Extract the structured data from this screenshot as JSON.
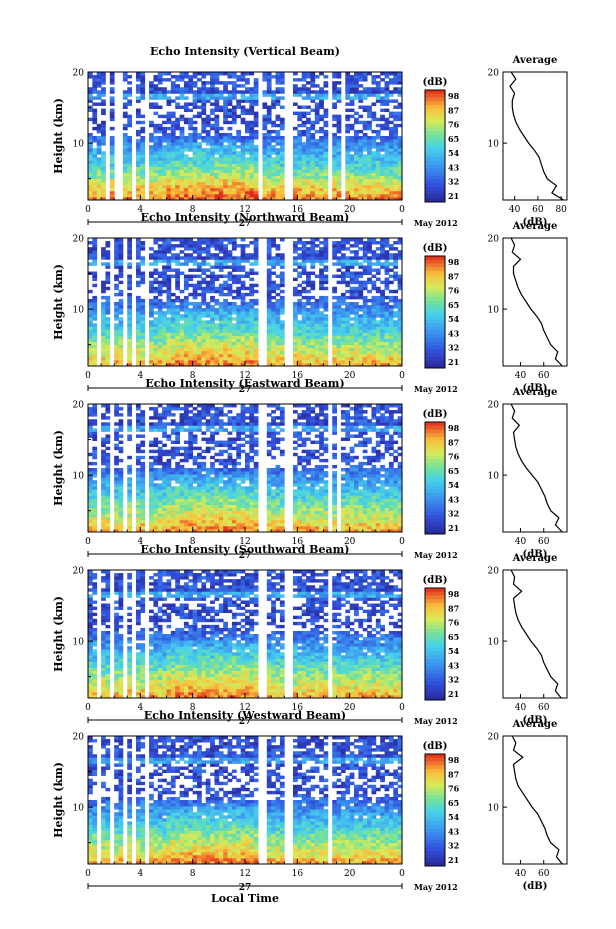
{
  "chart_data": [
    {
      "type": "heatmap",
      "title": "Echo Intensity (Vertical Beam)",
      "ylabel": "Height (km)",
      "ylim": [
        2,
        20
      ],
      "yticks": [
        20,
        10
      ],
      "xticks": [
        "0",
        "4",
        "8",
        "12",
        "16",
        "20",
        "0"
      ],
      "xlim": [
        0,
        24
      ],
      "date_label": "27",
      "month_label": "May 2012",
      "colorbar": {
        "unit": "(dB)",
        "ticks": [
          "98",
          "87",
          "76",
          "65",
          "54",
          "43",
          "32",
          "21"
        ],
        "range": [
          21,
          98
        ]
      },
      "missing_hours": [
        [
          1.2,
          1.6
        ],
        [
          2.1,
          2.5
        ],
        [
          3.4,
          3.7
        ],
        [
          4.4,
          4.6
        ],
        [
          13.0,
          13.3
        ],
        [
          14.9,
          15.6
        ],
        [
          18.4,
          18.7
        ],
        [
          19.2,
          19.5
        ]
      ],
      "average_profile": {
        "title": "Average",
        "xlabel": "(dB)",
        "xticks": [
          "40",
          "60",
          "80"
        ],
        "xlim": [
          30,
          85
        ],
        "yticks": [
          20,
          10
        ],
        "ylim": [
          2,
          20
        ],
        "height": [
          2,
          3,
          4,
          5,
          6,
          7,
          8,
          9,
          10,
          11,
          12,
          13,
          14,
          15,
          16,
          17,
          18,
          19,
          20
        ],
        "db": [
          82,
          72,
          76,
          68,
          65,
          63,
          61,
          57,
          52,
          48,
          44,
          41,
          39,
          38,
          38,
          40,
          36,
          41,
          37
        ]
      }
    },
    {
      "type": "heatmap",
      "title": "Echo Intensity (Northward Beam)",
      "ylabel": "Height (km)",
      "ylim": [
        2,
        20
      ],
      "yticks": [
        20,
        10
      ],
      "xticks": [
        "0",
        "4",
        "8",
        "12",
        "16",
        "20",
        "0"
      ],
      "xlim": [
        0,
        24
      ],
      "date_label": "27",
      "month_label": "May 2012",
      "colorbar": {
        "unit": "(dB)",
        "ticks": [
          "98",
          "87",
          "76",
          "65",
          "54",
          "43",
          "32",
          "21"
        ],
        "range": [
          21,
          98
        ]
      },
      "missing_hours": [
        [
          0.8,
          1.1
        ],
        [
          1.6,
          2.0
        ],
        [
          2.6,
          2.9
        ],
        [
          3.4,
          3.7
        ],
        [
          4.5,
          4.7
        ],
        [
          13.0,
          13.5
        ],
        [
          15.1,
          15.7
        ],
        [
          18.4,
          18.6
        ]
      ],
      "average_profile": {
        "title": "Average",
        "xlabel": "(dB)",
        "xticks": [
          "40",
          "60"
        ],
        "xlim": [
          25,
          80
        ],
        "yticks": [
          20,
          10
        ],
        "ylim": [
          2,
          20
        ],
        "height": [
          2,
          3,
          4,
          5,
          6,
          7,
          8,
          9,
          10,
          11,
          12,
          13,
          14,
          15,
          16,
          17,
          18,
          19,
          20
        ],
        "db": [
          76,
          70,
          72,
          66,
          63,
          60,
          58,
          54,
          49,
          45,
          41,
          38,
          36,
          34,
          34,
          40,
          33,
          35,
          32
        ]
      }
    },
    {
      "type": "heatmap",
      "title": "Echo Intensity (Eastward Beam)",
      "ylabel": "Height (km)",
      "ylim": [
        2,
        20
      ],
      "yticks": [
        20,
        10
      ],
      "xticks": [
        "0",
        "4",
        "8",
        "12",
        "16",
        "20",
        "0"
      ],
      "xlim": [
        0,
        24
      ],
      "date_label": "27",
      "month_label": "May 2012",
      "colorbar": {
        "unit": "(dB)",
        "ticks": [
          "98",
          "87",
          "76",
          "65",
          "54",
          "43",
          "32",
          "21"
        ],
        "range": [
          21,
          98
        ]
      },
      "missing_hours": [
        [
          0.8,
          1.1
        ],
        [
          1.6,
          2.0
        ],
        [
          2.6,
          2.9
        ],
        [
          3.4,
          3.7
        ],
        [
          4.5,
          4.7
        ],
        [
          13.0,
          13.5
        ],
        [
          15.1,
          15.7
        ],
        [
          18.4,
          18.6
        ],
        [
          19.1,
          19.4
        ]
      ],
      "average_profile": {
        "title": "Average",
        "xlabel": "(dB)",
        "xticks": [
          "40",
          "60"
        ],
        "xlim": [
          25,
          80
        ],
        "yticks": [
          20,
          10
        ],
        "ylim": [
          2,
          20
        ],
        "height": [
          2,
          3,
          4,
          5,
          6,
          7,
          8,
          9,
          10,
          11,
          12,
          13,
          14,
          15,
          16,
          17,
          18,
          19,
          20
        ],
        "db": [
          76,
          70,
          73,
          66,
          63,
          61,
          58,
          55,
          50,
          45,
          41,
          38,
          36,
          35,
          34,
          39,
          33,
          35,
          32
        ]
      }
    },
    {
      "type": "heatmap",
      "title": "Echo Intensity (Southward Beam)",
      "ylabel": "Height (km)",
      "ylim": [
        2,
        20
      ],
      "yticks": [
        20,
        10
      ],
      "xticks": [
        "0",
        "4",
        "8",
        "12",
        "16",
        "20",
        "0"
      ],
      "xlim": [
        0,
        24
      ],
      "date_label": "27",
      "month_label": "May 2012",
      "colorbar": {
        "unit": "(dB)",
        "ticks": [
          "98",
          "87",
          "76",
          "65",
          "54",
          "43",
          "32",
          "21"
        ],
        "range": [
          21,
          98
        ]
      },
      "missing_hours": [
        [
          0.8,
          1.1
        ],
        [
          1.6,
          2.0
        ],
        [
          2.6,
          2.9
        ],
        [
          3.4,
          3.7
        ],
        [
          4.5,
          4.7
        ],
        [
          13.0,
          13.5
        ],
        [
          15.1,
          15.7
        ],
        [
          18.4,
          18.6
        ]
      ],
      "average_profile": {
        "title": "Average",
        "xlabel": "(dB)",
        "xticks": [
          "40",
          "60"
        ],
        "xlim": [
          25,
          80
        ],
        "yticks": [
          20,
          10
        ],
        "ylim": [
          2,
          20
        ],
        "height": [
          2,
          3,
          4,
          5,
          6,
          7,
          8,
          9,
          10,
          11,
          12,
          13,
          14,
          15,
          16,
          17,
          18,
          19,
          20
        ],
        "db": [
          75,
          70,
          72,
          66,
          63,
          60,
          58,
          54,
          49,
          45,
          41,
          38,
          36,
          35,
          34,
          41,
          34,
          35,
          32
        ]
      }
    },
    {
      "type": "heatmap",
      "title": "Echo Intensity (Westward Beam)",
      "ylabel": "Height (km)",
      "ylim": [
        2,
        20
      ],
      "yticks": [
        20,
        10
      ],
      "xticks": [
        "0",
        "4",
        "8",
        "12",
        "16",
        "20",
        "0"
      ],
      "xlim": [
        0,
        24
      ],
      "date_label": "27",
      "month_label": "May 2012",
      "xlabel": "Local Time",
      "colorbar": {
        "unit": "(dB)",
        "ticks": [
          "98",
          "87",
          "76",
          "65",
          "54",
          "43",
          "32",
          "21"
        ],
        "range": [
          21,
          98
        ]
      },
      "missing_hours": [
        [
          0.8,
          1.1
        ],
        [
          1.6,
          2.0
        ],
        [
          2.6,
          2.9
        ],
        [
          3.4,
          3.7
        ],
        [
          4.5,
          4.7
        ],
        [
          13.0,
          13.5
        ],
        [
          15.1,
          15.7
        ],
        [
          18.4,
          18.6
        ]
      ],
      "average_profile": {
        "title": "Average",
        "xlabel": "(dB)",
        "xticks": [
          "40",
          "60"
        ],
        "xlim": [
          25,
          80
        ],
        "yticks": [
          20,
          10
        ],
        "ylim": [
          2,
          20
        ],
        "height": [
          2,
          3,
          4,
          5,
          6,
          7,
          8,
          9,
          10,
          11,
          12,
          13,
          14,
          15,
          16,
          17,
          18,
          19,
          20
        ],
        "db": [
          76,
          71,
          73,
          66,
          63,
          61,
          58,
          55,
          50,
          46,
          42,
          38,
          36,
          35,
          34,
          42,
          34,
          36,
          33
        ]
      }
    }
  ]
}
